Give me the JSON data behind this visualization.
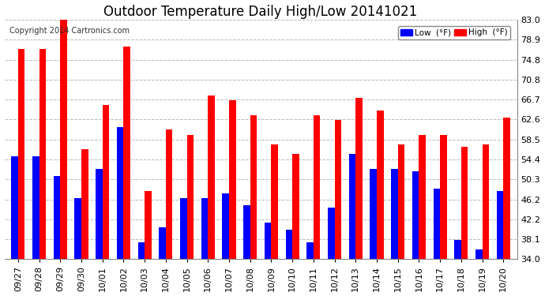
{
  "title": "Outdoor Temperature Daily High/Low 20141021",
  "copyright": "Copyright 2014 Cartronics.com",
  "legend_low": "Low  (°F)",
  "legend_high": "High  (°F)",
  "categories": [
    "09/27",
    "09/28",
    "09/29",
    "09/30",
    "10/01",
    "10/02",
    "10/03",
    "10/04",
    "10/05",
    "10/06",
    "10/07",
    "10/08",
    "10/09",
    "10/10",
    "10/11",
    "10/12",
    "10/13",
    "10/14",
    "10/15",
    "10/16",
    "10/17",
    "10/18",
    "10/19",
    "10/20"
  ],
  "high_values": [
    77.0,
    77.0,
    84.5,
    56.5,
    65.5,
    77.5,
    48.0,
    60.5,
    59.5,
    67.5,
    66.5,
    63.5,
    57.5,
    55.5,
    63.5,
    62.5,
    67.0,
    64.5,
    57.5,
    59.5,
    59.5,
    57.0,
    57.5,
    63.0
  ],
  "low_values": [
    55.0,
    55.0,
    51.0,
    46.5,
    52.5,
    61.0,
    37.5,
    40.5,
    46.5,
    46.5,
    47.5,
    45.0,
    41.5,
    40.0,
    37.5,
    44.5,
    55.5,
    52.5,
    52.5,
    52.0,
    48.5,
    38.0,
    36.0,
    48.0
  ],
  "bar_width": 0.32,
  "ylim_min": 34.0,
  "ylim_max": 83.0,
  "yticks": [
    34.0,
    38.1,
    42.2,
    46.2,
    50.3,
    54.4,
    58.5,
    62.6,
    66.7,
    70.8,
    74.8,
    78.9,
    83.0
  ],
  "color_high": "#ff0000",
  "color_low": "#0000ff",
  "background_color": "#ffffff",
  "grid_color": "#bbbbbb",
  "title_fontsize": 12,
  "tick_fontsize": 8,
  "copyright_fontsize": 7
}
